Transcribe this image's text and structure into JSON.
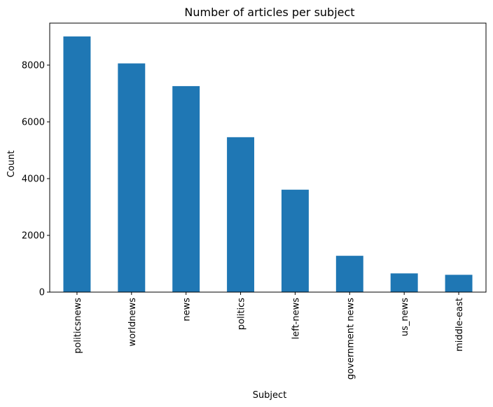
{
  "chart_data": {
    "type": "bar",
    "title": "Number of articles per subject",
    "xlabel": "Subject",
    "ylabel": "Count",
    "categories": [
      "politicsnews",
      "worldnews",
      "news",
      "politics",
      "left-news",
      "government news",
      "us_news",
      "middle-east"
    ],
    "values": [
      9010,
      8060,
      7260,
      5460,
      3610,
      1280,
      660,
      610
    ],
    "ylim": [
      0,
      9480
    ],
    "yticks": [
      0,
      2000,
      4000,
      6000,
      8000
    ],
    "ytick_labels": [
      "0",
      "2000",
      "4000",
      "6000",
      "8000"
    ],
    "grid": false,
    "legend": "none",
    "colors": {
      "bar": "#1f77b4",
      "axis": "#000000",
      "background": "#ffffff"
    }
  }
}
